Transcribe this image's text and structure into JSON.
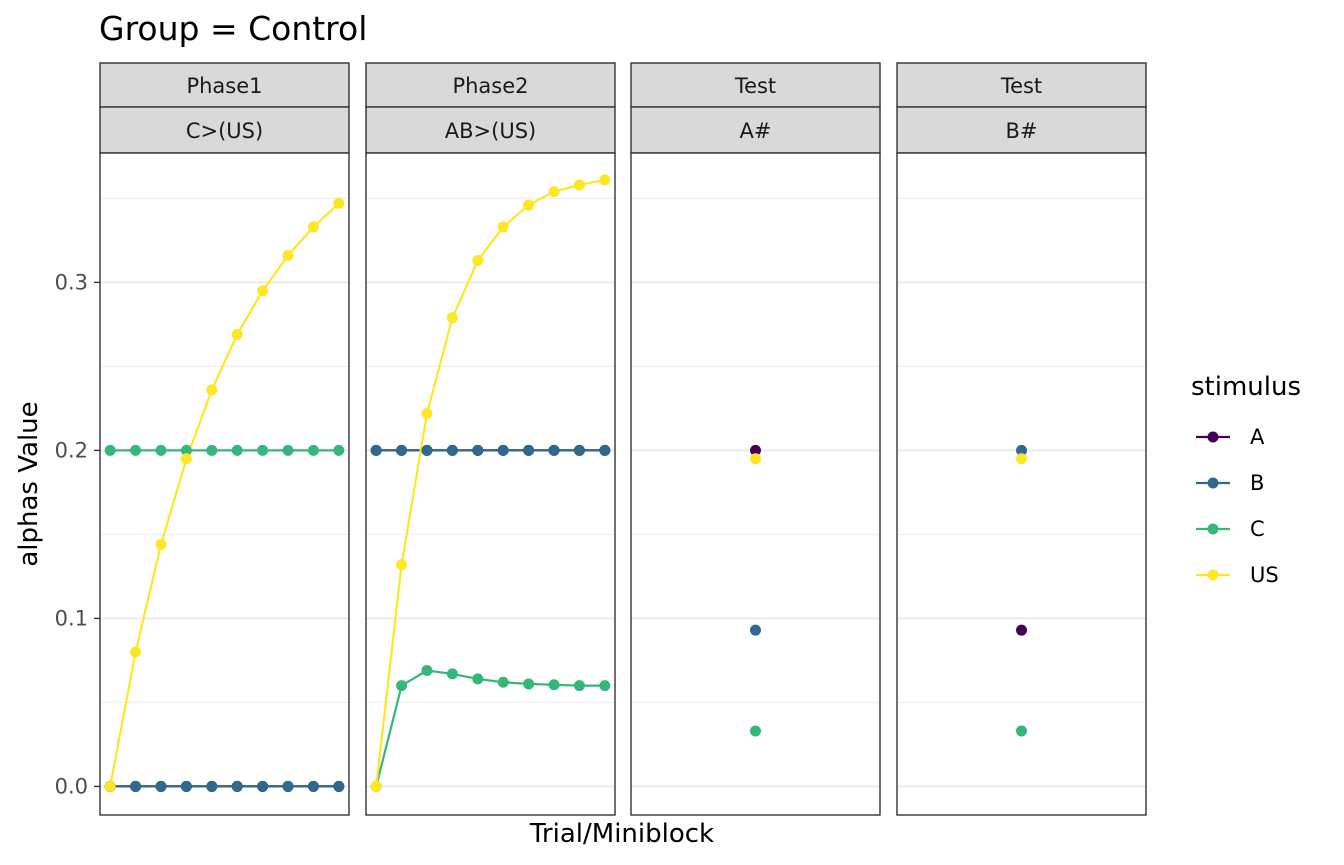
{
  "chart_data": {
    "type": "line",
    "title": "Group = Control",
    "xlabel": "Trial/Miniblock",
    "ylabel": "alphas Value",
    "ylim": [
      -0.017,
      0.377
    ],
    "y_ticks": [
      0.0,
      0.1,
      0.2,
      0.3
    ],
    "y_tick_labels": [
      "0.0",
      "0.1",
      "0.2",
      "0.3"
    ],
    "grid": true,
    "legend": {
      "title": "stimulus",
      "placement": "right",
      "entries": [
        "A",
        "B",
        "C",
        "US"
      ]
    },
    "colors": {
      "A": "#440154",
      "B": "#31688e",
      "C": "#35b779",
      "US": "#fde725"
    },
    "panels": [
      {
        "strip_top": "Phase1",
        "strip_bottom": "C>(US)",
        "xlim": [
          0.6,
          10.4
        ],
        "series": [
          {
            "name": "A",
            "x": [
              1,
              2,
              3,
              4,
              5,
              6,
              7,
              8,
              9,
              10
            ],
            "values": [
              0,
              0,
              0,
              0,
              0,
              0,
              0,
              0,
              0,
              0
            ]
          },
          {
            "name": "B",
            "x": [
              1,
              2,
              3,
              4,
              5,
              6,
              7,
              8,
              9,
              10
            ],
            "values": [
              0,
              0,
              0,
              0,
              0,
              0,
              0,
              0,
              0,
              0
            ]
          },
          {
            "name": "C",
            "x": [
              1,
              2,
              3,
              4,
              5,
              6,
              7,
              8,
              9,
              10
            ],
            "values": [
              0.2,
              0.2,
              0.2,
              0.2,
              0.2,
              0.2,
              0.2,
              0.2,
              0.2,
              0.2
            ]
          },
          {
            "name": "US",
            "x": [
              1,
              2,
              3,
              4,
              5,
              6,
              7,
              8,
              9,
              10
            ],
            "values": [
              0.0,
              0.08,
              0.144,
              0.195,
              0.236,
              0.269,
              0.295,
              0.316,
              0.333,
              0.347
            ]
          }
        ]
      },
      {
        "strip_top": "Phase2",
        "strip_bottom": "AB>(US)",
        "xlim": [
          0.6,
          10.4
        ],
        "series": [
          {
            "name": "A",
            "x": [
              1,
              2,
              3,
              4,
              5,
              6,
              7,
              8,
              9,
              10
            ],
            "values": [
              0.2,
              0.2,
              0.2,
              0.2,
              0.2,
              0.2,
              0.2,
              0.2,
              0.2,
              0.2
            ]
          },
          {
            "name": "B",
            "x": [
              1,
              2,
              3,
              4,
              5,
              6,
              7,
              8,
              9,
              10
            ],
            "values": [
              0.2,
              0.2,
              0.2,
              0.2,
              0.2,
              0.2,
              0.2,
              0.2,
              0.2,
              0.2
            ]
          },
          {
            "name": "C",
            "x": [
              1,
              2,
              3,
              4,
              5,
              6,
              7,
              8,
              9,
              10
            ],
            "values": [
              0.0,
              0.06,
              0.069,
              0.067,
              0.064,
              0.062,
              0.061,
              0.0605,
              0.06,
              0.06
            ]
          },
          {
            "name": "US",
            "x": [
              1,
              2,
              3,
              4,
              5,
              6,
              7,
              8,
              9,
              10
            ],
            "values": [
              0.0,
              0.132,
              0.222,
              0.279,
              0.313,
              0.333,
              0.346,
              0.354,
              0.358,
              0.361
            ]
          }
        ]
      },
      {
        "strip_top": "Test",
        "strip_bottom": "A#",
        "xlim": [
          0.4,
          1.6
        ],
        "series": [
          {
            "name": "A",
            "x": [
              1
            ],
            "values": [
              0.2
            ]
          },
          {
            "name": "B",
            "x": [
              1
            ],
            "values": [
              0.093
            ]
          },
          {
            "name": "C",
            "x": [
              1
            ],
            "values": [
              0.033
            ]
          },
          {
            "name": "US",
            "x": [
              1
            ],
            "values": [
              0.195
            ]
          }
        ]
      },
      {
        "strip_top": "Test",
        "strip_bottom": "B#",
        "xlim": [
          0.4,
          1.6
        ],
        "series": [
          {
            "name": "A",
            "x": [
              1
            ],
            "values": [
              0.093
            ]
          },
          {
            "name": "B",
            "x": [
              1
            ],
            "values": [
              0.2
            ]
          },
          {
            "name": "C",
            "x": [
              1
            ],
            "values": [
              0.033
            ]
          },
          {
            "name": "US",
            "x": [
              1
            ],
            "values": [
              0.195
            ]
          }
        ]
      }
    ]
  }
}
